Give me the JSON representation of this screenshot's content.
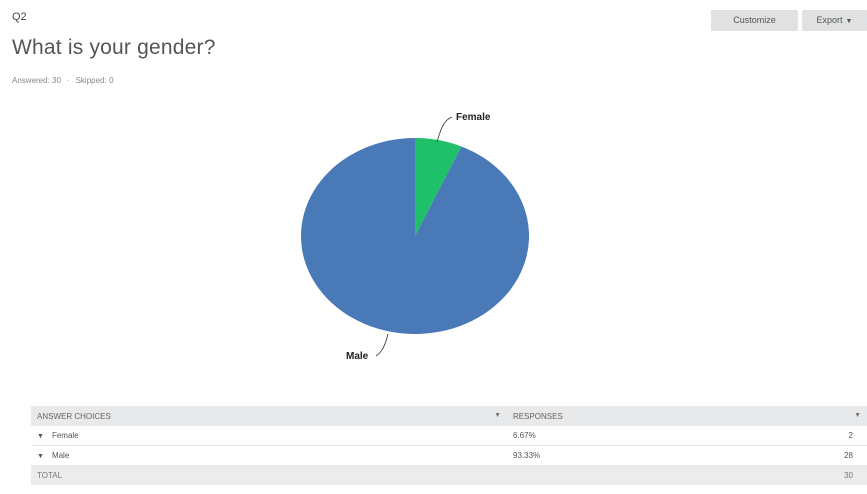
{
  "question": {
    "number": "Q2",
    "title": "What is your gender?",
    "answered": "Answered: 30",
    "skipped": "Skipped: 0"
  },
  "toolbar": {
    "customize_label": "Customize",
    "export_label": "Export"
  },
  "chart_data": {
    "type": "pie",
    "categories": [
      "Female",
      "Male"
    ],
    "values": [
      6.67,
      93.33
    ],
    "colors": [
      "#1ec16a",
      "#4a79b7"
    ]
  },
  "table": {
    "headers": [
      "ANSWER CHOICES",
      "RESPONSES"
    ],
    "rows": [
      {
        "choice": "Female",
        "percent": "6.67%",
        "count": "2"
      },
      {
        "choice": "Male",
        "percent": "93.33%",
        "count": "28"
      }
    ],
    "total_label": "TOTAL",
    "total_count": "30"
  }
}
